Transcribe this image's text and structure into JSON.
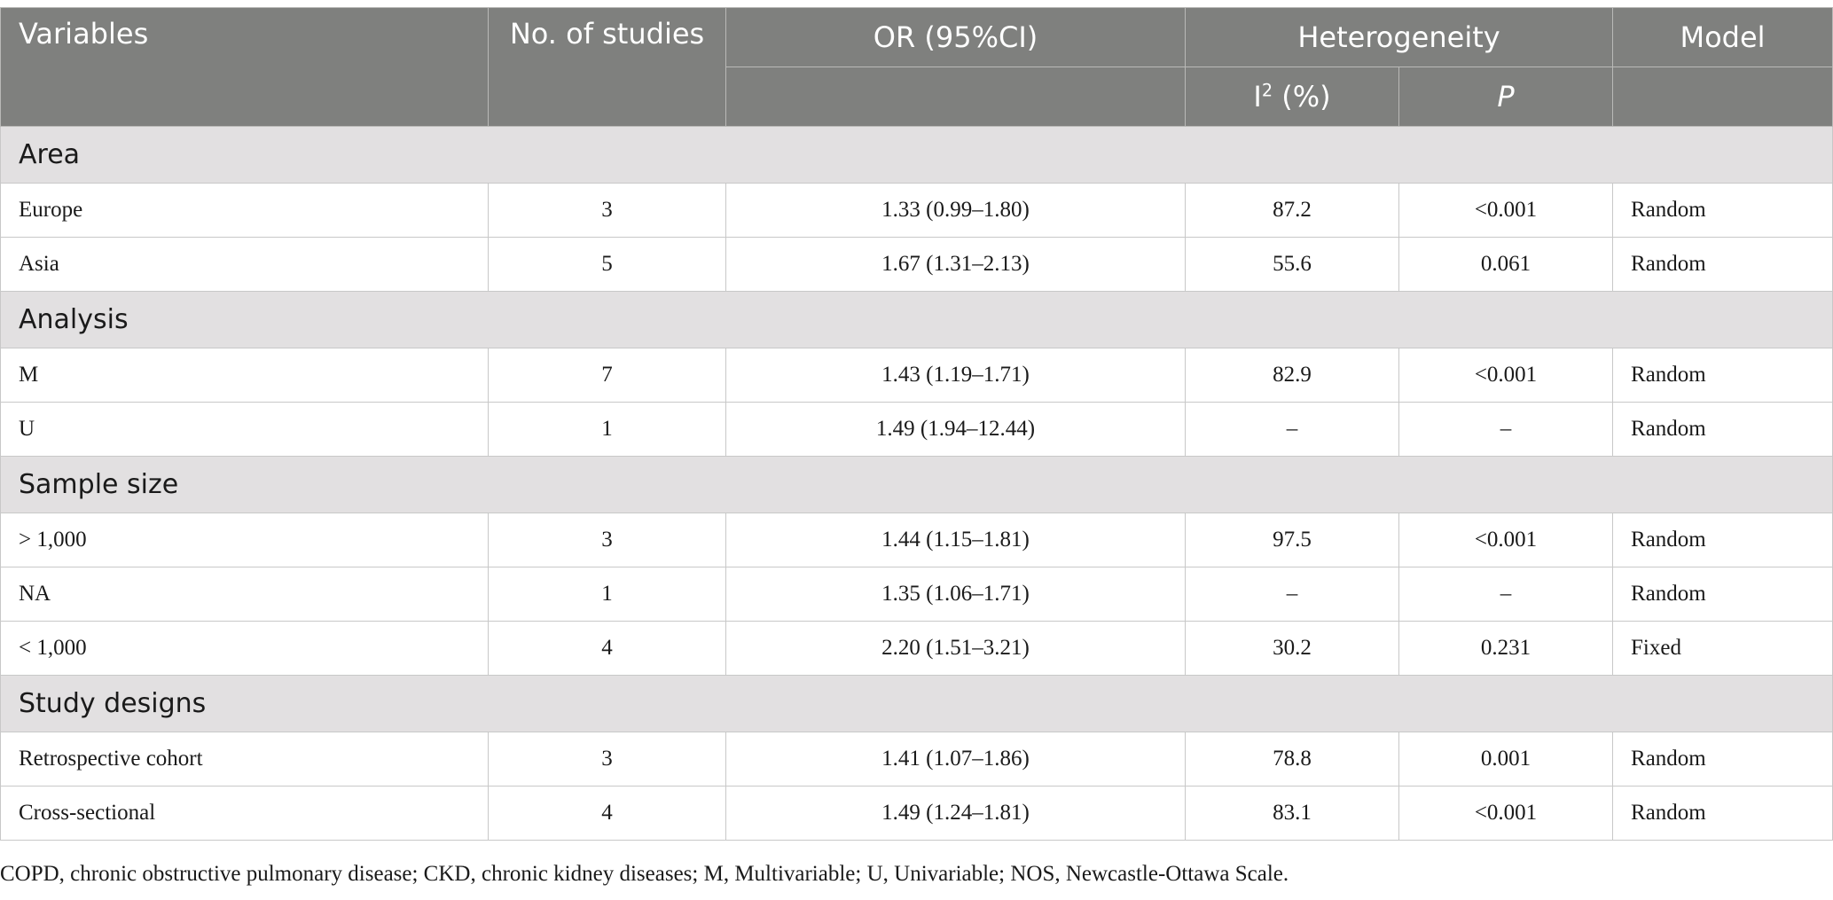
{
  "header": {
    "variables": "Variables",
    "studies": "No. of studies",
    "or": "OR (95%CI)",
    "heterogeneity": "Heterogeneity",
    "i2_base": "I",
    "i2_sup": "2",
    "i2_unit": " (%)",
    "p": "P",
    "model": "Model"
  },
  "groups": [
    {
      "label": "Area",
      "rows": [
        {
          "variable": "Europe",
          "studies": "3",
          "or": "1.33 (0.99–1.80)",
          "i2": "87.2",
          "p": "<0.001",
          "model": "Random"
        },
        {
          "variable": "Asia",
          "studies": "5",
          "or": "1.67 (1.31–2.13)",
          "i2": "55.6",
          "p": "0.061",
          "model": "Random"
        }
      ]
    },
    {
      "label": "Analysis",
      "rows": [
        {
          "variable": "M",
          "studies": "7",
          "or": "1.43 (1.19–1.71)",
          "i2": "82.9",
          "p": "<0.001",
          "model": "Random"
        },
        {
          "variable": "U",
          "studies": "1",
          "or": "1.49 (1.94–12.44)",
          "i2": "–",
          "p": "–",
          "model": "Random"
        }
      ]
    },
    {
      "label": "Sample size",
      "rows": [
        {
          "variable": "> 1,000",
          "studies": "3",
          "or": "1.44 (1.15–1.81)",
          "i2": "97.5",
          "p": "<0.001",
          "model": "Random"
        },
        {
          "variable": "NA",
          "studies": "1",
          "or": "1.35 (1.06–1.71)",
          "i2": "–",
          "p": "–",
          "model": "Random"
        },
        {
          "variable": "< 1,000",
          "studies": "4",
          "or": "2.20 (1.51–3.21)",
          "i2": "30.2",
          "p": "0.231",
          "model": "Fixed"
        }
      ]
    },
    {
      "label": "Study designs",
      "rows": [
        {
          "variable": "Retrospective cohort",
          "studies": "3",
          "or": "1.41 (1.07–1.86)",
          "i2": "78.8",
          "p": "0.001",
          "model": "Random"
        },
        {
          "variable": "Cross-sectional",
          "studies": "4",
          "or": "1.49 (1.24–1.81)",
          "i2": "83.1",
          "p": "<0.001",
          "model": "Random"
        }
      ]
    }
  ],
  "footnote": "COPD, chronic obstructive pulmonary disease; CKD, chronic kidney diseases; M, Multivariable; U, Univariable; NOS, Newcastle-Ottawa Scale.",
  "colors": {
    "header_bg": "#7f807e",
    "group_bg": "#e2e0e1"
  }
}
